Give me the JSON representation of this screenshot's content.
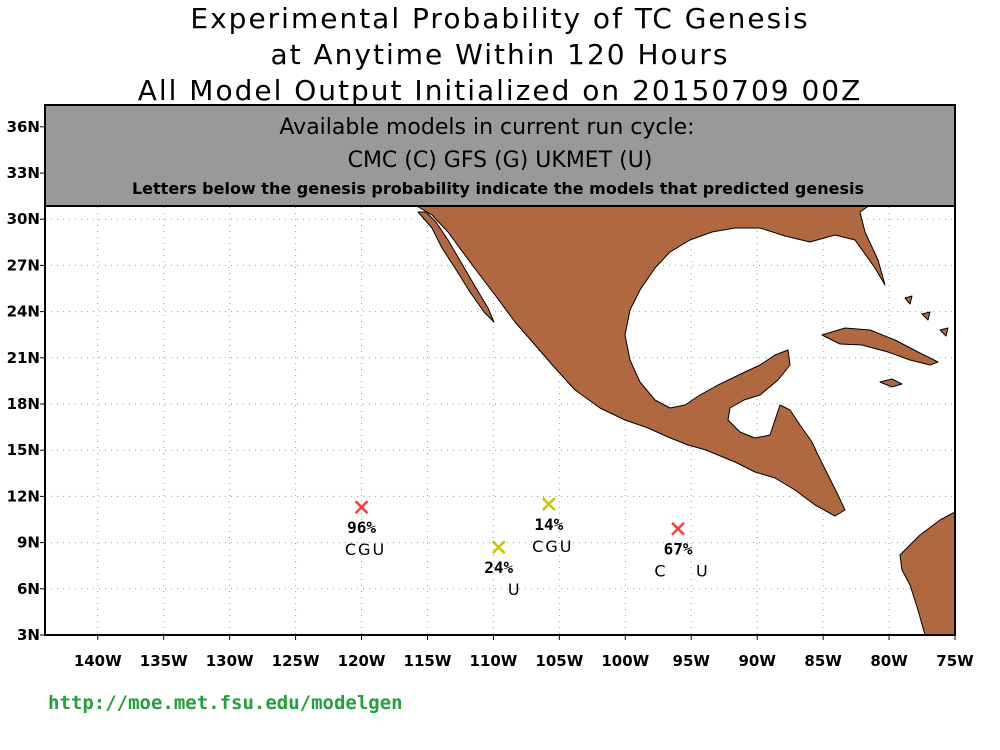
{
  "title": {
    "line1": "Experimental Probability of TC Genesis",
    "line2": "at Anytime Within 120 Hours",
    "line3": "All Model Output Initialized on 20150709 00Z"
  },
  "panel": {
    "heading": "Available models in current run cycle:",
    "models": "CMC (C) GFS (G)  UKMET (U)",
    "note": "Letters below the genesis probability indicate the models that predicted genesis"
  },
  "lat_labels": [
    "36N",
    "33N",
    "30N",
    "27N",
    "24N",
    "21N",
    "18N",
    "15N",
    "12N",
    "9N",
    "6N",
    "3N"
  ],
  "lon_labels": [
    "140W",
    "135W",
    "130W",
    "125W",
    "120W",
    "115W",
    "110W",
    "105W",
    "100W",
    "95W",
    "90W",
    "85W",
    "80W",
    "75W"
  ],
  "colors": {
    "land": "#b06840",
    "panel": "#999999",
    "high": "#ff3b3b",
    "low": "#c8c400",
    "url": "#22a03a"
  },
  "genesis_points": [
    {
      "lon": -120.0,
      "lat": 11.3,
      "probability": "96%",
      "models": "CGU",
      "color": "#ff3b3b"
    },
    {
      "lon": -105.8,
      "lat": 11.5,
      "probability": "14%",
      "models": "CGU",
      "color": "#c8c400"
    },
    {
      "lon": -109.6,
      "lat": 8.7,
      "probability": "24%",
      "models": "U",
      "color": "#c8c400"
    },
    {
      "lon": -96.0,
      "lat": 9.9,
      "probability": "67%",
      "models": "C U",
      "color": "#ff3b3b"
    }
  ],
  "url": "http://moe.met.fsu.edu/modelgen"
}
